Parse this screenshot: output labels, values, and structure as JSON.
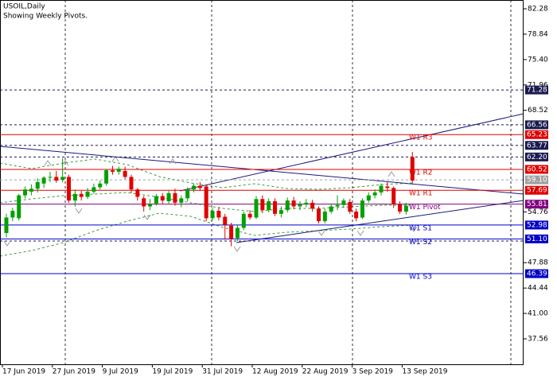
{
  "chart_data": {
    "type": "candlestick",
    "title": "USOIL,Daily",
    "subtitle": "Showing Weekly Pivots.",
    "up_color": "#00a000",
    "down_color": "#e00000",
    "open": [
      51.9,
      54.0,
      53.9,
      57.0,
      57.5,
      57.9,
      58.6,
      59.4,
      59.5,
      59.1,
      59.5,
      56.3,
      57.2,
      56.8,
      57.5,
      58.1,
      58.6,
      60.4,
      60.2,
      60.3,
      59.5,
      57.8,
      56.6,
      55.5,
      55.9,
      56.9,
      56.2,
      57.3,
      56.0,
      56.6,
      57.8,
      58.3,
      58.2,
      53.9,
      54.9,
      54.1,
      52.9,
      51.2,
      52.6,
      54.5,
      54.0,
      56.5,
      55.0,
      56.2,
      54.5,
      55.0,
      56.3,
      55.5,
      55.8,
      56.0,
      55.2,
      53.5,
      54.8,
      55.5,
      55.7,
      56.1,
      54.8,
      54.0,
      56.3,
      57.0,
      57.4,
      58.2,
      58.0,
      55.8,
      54.8,
      62.2
    ],
    "high": [
      54.5,
      55.3,
      57.2,
      58.2,
      58.5,
      59.3,
      59.6,
      60.2,
      60.3,
      62.0,
      59.8,
      57.8,
      57.6,
      58.0,
      58.6,
      59.0,
      60.6,
      61.0,
      60.9,
      60.9,
      59.8,
      58.0,
      56.9,
      56.5,
      57.2,
      57.3,
      57.6,
      57.9,
      57.0,
      58.1,
      58.6,
      58.8,
      58.4,
      55.3,
      55.4,
      54.5,
      53.3,
      53.0,
      54.8,
      55.0,
      56.9,
      57.0,
      56.6,
      56.6,
      55.5,
      56.7,
      56.8,
      56.2,
      56.5,
      56.4,
      55.5,
      55.2,
      55.9,
      57.0,
      56.6,
      56.5,
      55.2,
      56.6,
      57.4,
      57.8,
      58.6,
      58.8,
      58.2,
      56.2,
      56.0,
      62.9
    ],
    "low": [
      51.3,
      53.5,
      53.6,
      56.6,
      57.0,
      57.4,
      58.0,
      58.8,
      58.7,
      58.8,
      56.0,
      55.5,
      56.3,
      56.5,
      57.2,
      57.8,
      58.3,
      59.8,
      59.8,
      59.2,
      57.3,
      56.3,
      54.8,
      55.0,
      55.6,
      55.9,
      55.9,
      55.6,
      55.4,
      56.2,
      57.4,
      57.6,
      53.5,
      53.6,
      53.6,
      51.0,
      50.1,
      50.8,
      52.3,
      53.7,
      53.8,
      54.6,
      54.7,
      54.2,
      54.0,
      54.7,
      55.1,
      55.0,
      55.4,
      54.8,
      53.2,
      53.2,
      54.5,
      55.0,
      55.3,
      54.5,
      53.5,
      53.8,
      56.0,
      56.6,
      57.0,
      57.5,
      55.3,
      54.5,
      54.4,
      58.6
    ],
    "close": [
      54.0,
      54.9,
      57.0,
      57.8,
      57.9,
      58.8,
      59.4,
      59.5,
      59.0,
      59.5,
      56.3,
      57.2,
      56.8,
      57.5,
      58.1,
      58.6,
      60.4,
      60.2,
      60.6,
      59.5,
      57.8,
      56.8,
      55.5,
      55.8,
      56.9,
      56.3,
      57.3,
      56.0,
      56.6,
      57.8,
      58.3,
      58.0,
      53.9,
      54.9,
      54.0,
      53.0,
      51.1,
      52.6,
      54.5,
      54.0,
      56.5,
      55.0,
      56.2,
      54.5,
      55.0,
      56.3,
      55.5,
      55.8,
      56.0,
      55.2,
      53.5,
      54.8,
      55.5,
      55.7,
      56.3,
      54.8,
      53.9,
      56.3,
      57.0,
      57.4,
      58.3,
      58.0,
      55.8,
      54.8,
      55.6,
      59.0
    ],
    "xticks": [
      {
        "value": 0,
        "label": "17 Jun 2019"
      },
      {
        "value": 8,
        "label": "27 Jun 2019"
      },
      {
        "value": 16,
        "label": "9 Jul 2019"
      },
      {
        "value": 24,
        "label": "19 Jul 2019"
      },
      {
        "value": 32,
        "label": "31 Jul 2019"
      },
      {
        "value": 40,
        "label": "12 Aug 2019"
      },
      {
        "value": 48,
        "label": "22 Aug 2019"
      },
      {
        "value": 56,
        "label": "3 Sep 2019"
      },
      {
        "value": 64,
        "label": "13 Sep 2019"
      }
    ],
    "ylim": [
      34.11,
      83.47
    ],
    "yticks": [
      82.28,
      78.84,
      {
        "value": 75.4,
        "label": "75.40"
      },
      71.96,
      68.52,
      54.76,
      47.88,
      44.44,
      {
        "value": 41,
        "label": "41.00"
      },
      37.56
    ],
    "pivots": [
      {
        "name": "W1 R3",
        "value": 65.23,
        "color": "#e00000"
      },
      {
        "name": "W1 R2",
        "value": 60.52,
        "color": "#e00000"
      },
      {
        "name": "W1 R1",
        "value": 57.69,
        "color": "#e00000"
      },
      {
        "name": "W1 Pivot",
        "value": 55.81,
        "color": "#800080"
      },
      {
        "name": "W1 S1",
        "value": 52.98,
        "color": "#0000c8"
      },
      {
        "name": "W1 S2",
        "value": {
          "value": 51.1,
          "label": "51.10"
        },
        "color": "#0000c8"
      },
      {
        "name": "W1 S3",
        "value": 46.39,
        "color": "#0000c8"
      }
    ],
    "levels": [
      {
        "value": 71.28,
        "color": "#1a1a50"
      },
      {
        "value": 66.56,
        "color": "#1a1a50"
      },
      {
        "value": 63.77,
        "color": "#1a1a50"
      },
      {
        "value": {
          "value": 62.2,
          "label": "62.20"
        },
        "color": "#1a1a50"
      },
      {
        "value": {
          "value": 59.1,
          "label": "59.10"
        },
        "color": "#a0a0a0"
      }
    ]
  }
}
